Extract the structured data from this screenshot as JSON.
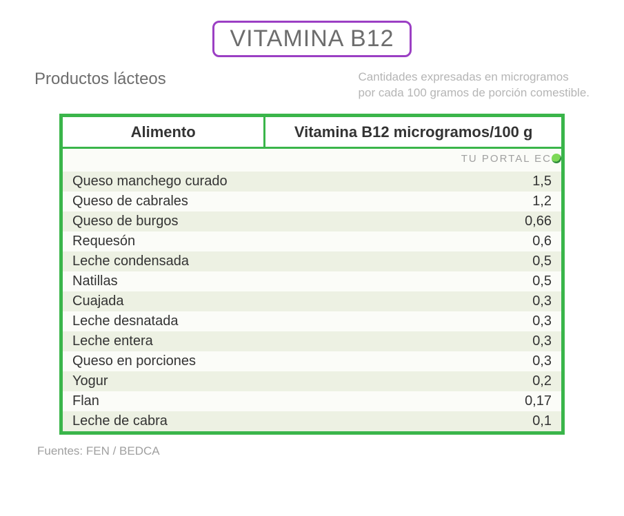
{
  "title": "VITAMINA B12",
  "subtitle": "Productos lácteos",
  "note_line1": "Cantidades expresadas en microgramos",
  "note_line2": "por cada 100 gramos de porción comestible.",
  "watermark": "TU PORTAL EC",
  "sources": "Fuentes: FEN / BEDCA",
  "colors": {
    "title_border": "#9b3fc4",
    "title_text": "#6d6d6d",
    "subtitle_text": "#6d6d6d",
    "note_text": "#b5b5b5",
    "table_border": "#3ab54a",
    "header_bg": "#ffffff",
    "header_text": "#333333",
    "row_stripe_a": "#edf1e3",
    "row_stripe_b": "#fbfcf8",
    "row_text": "#333333",
    "watermark_text": "#a0a0a0",
    "sources_text": "#a0a0a0",
    "body_bg": "#ffffff"
  },
  "table": {
    "columns": [
      "Alimento",
      "Vitamina B12 microgramos/100 g"
    ],
    "rows": [
      [
        "Queso manchego curado",
        "1,5"
      ],
      [
        "Queso de cabrales",
        "1,2"
      ],
      [
        "Queso de burgos",
        "0,66"
      ],
      [
        "Requesón",
        "0,6"
      ],
      [
        "Leche condensada",
        "0,5"
      ],
      [
        "Natillas",
        "0,5"
      ],
      [
        "Cuajada",
        "0,3"
      ],
      [
        "Leche desnatada",
        "0,3"
      ],
      [
        "Leche entera",
        "0,3"
      ],
      [
        "Queso en porciones",
        "0,3"
      ],
      [
        "Yogur",
        "0,2"
      ],
      [
        "Flan",
        "0,17"
      ],
      [
        "Leche de cabra",
        "0,1"
      ]
    ]
  }
}
